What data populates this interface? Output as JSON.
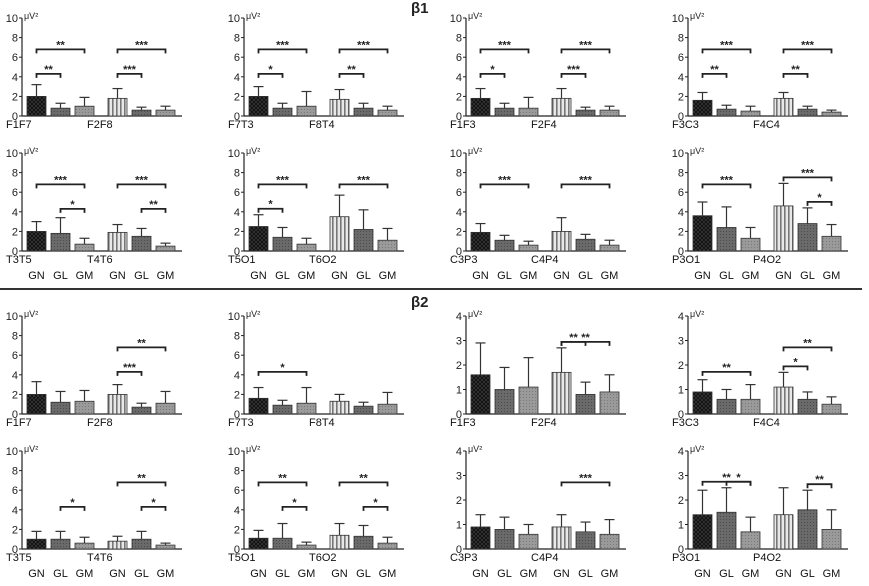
{
  "sections": [
    {
      "title": "β1"
    },
    {
      "title": "β2"
    }
  ],
  "unit": "μV²",
  "group_labels": [
    "GN",
    "GL",
    "GM"
  ],
  "chart_data": [
    {
      "type": "bar",
      "section": "β1",
      "ylim": [
        0,
        10
      ],
      "yticks": [
        0,
        2,
        4,
        6,
        8,
        10
      ],
      "show_groups": false,
      "pairs": [
        {
          "name": "F1F7",
          "values": [
            2.0,
            0.8,
            1.0
          ],
          "errors": [
            1.2,
            0.5,
            0.9
          ]
        },
        {
          "name": "F2F8",
          "values": [
            1.8,
            0.6,
            0.6
          ],
          "errors": [
            1.0,
            0.3,
            0.4
          ]
        }
      ],
      "sig": [
        {
          "pair": 0,
          "from": 0,
          "to": 1,
          "label": "**",
          "level": 1
        },
        {
          "pair": 0,
          "from": 0,
          "to": 2,
          "label": "**",
          "level": 2
        },
        {
          "pair": 1,
          "from": 0,
          "to": 1,
          "label": "***",
          "level": 1
        },
        {
          "pair": 1,
          "from": 0,
          "to": 2,
          "label": "***",
          "level": 2
        }
      ]
    },
    {
      "type": "bar",
      "section": "β1",
      "ylim": [
        0,
        10
      ],
      "yticks": [
        0,
        2,
        4,
        6,
        8,
        10
      ],
      "show_groups": false,
      "pairs": [
        {
          "name": "F7T3",
          "values": [
            2.0,
            0.8,
            1.0
          ],
          "errors": [
            1.0,
            0.5,
            1.5
          ]
        },
        {
          "name": "F8T4",
          "values": [
            1.7,
            0.8,
            0.6
          ],
          "errors": [
            1.0,
            0.5,
            0.4
          ]
        }
      ],
      "sig": [
        {
          "pair": 0,
          "from": 0,
          "to": 1,
          "label": "*",
          "level": 1
        },
        {
          "pair": 0,
          "from": 0,
          "to": 2,
          "label": "***",
          "level": 2
        },
        {
          "pair": 1,
          "from": 0,
          "to": 1,
          "label": "**",
          "level": 1
        },
        {
          "pair": 1,
          "from": 0,
          "to": 2,
          "label": "***",
          "level": 2
        }
      ]
    },
    {
      "type": "bar",
      "section": "β1",
      "ylim": [
        0,
        10
      ],
      "yticks": [
        0,
        2,
        4,
        6,
        8,
        10
      ],
      "show_groups": false,
      "pairs": [
        {
          "name": "F1F3",
          "values": [
            1.8,
            0.8,
            0.8
          ],
          "errors": [
            1.0,
            0.5,
            1.1
          ]
        },
        {
          "name": "F2F4",
          "values": [
            1.8,
            0.6,
            0.6
          ],
          "errors": [
            1.0,
            0.3,
            0.4
          ]
        }
      ],
      "sig": [
        {
          "pair": 0,
          "from": 0,
          "to": 1,
          "label": "*",
          "level": 1
        },
        {
          "pair": 0,
          "from": 0,
          "to": 2,
          "label": "***",
          "level": 2
        },
        {
          "pair": 1,
          "from": 0,
          "to": 1,
          "label": "***",
          "level": 1
        },
        {
          "pair": 1,
          "from": 0,
          "to": 2,
          "label": "***",
          "level": 2
        }
      ]
    },
    {
      "type": "bar",
      "section": "β1",
      "ylim": [
        0,
        10
      ],
      "yticks": [
        0,
        2,
        4,
        6,
        8,
        10
      ],
      "show_groups": false,
      "pairs": [
        {
          "name": "F3C3",
          "values": [
            1.6,
            0.7,
            0.5
          ],
          "errors": [
            0.8,
            0.4,
            0.5
          ]
        },
        {
          "name": "F4C4",
          "values": [
            1.8,
            0.7,
            0.4
          ],
          "errors": [
            0.6,
            0.3,
            0.2
          ]
        }
      ],
      "sig": [
        {
          "pair": 0,
          "from": 0,
          "to": 1,
          "label": "**",
          "level": 1
        },
        {
          "pair": 0,
          "from": 0,
          "to": 2,
          "label": "***",
          "level": 2
        },
        {
          "pair": 1,
          "from": 0,
          "to": 1,
          "label": "**",
          "level": 1
        },
        {
          "pair": 1,
          "from": 0,
          "to": 2,
          "label": "***",
          "level": 2
        }
      ]
    },
    {
      "type": "bar",
      "section": "β1",
      "ylim": [
        0,
        10
      ],
      "yticks": [
        0,
        2,
        4,
        6,
        8,
        10
      ],
      "show_groups": true,
      "pairs": [
        {
          "name": "T3T5",
          "values": [
            2.0,
            1.8,
            0.7
          ],
          "errors": [
            1.0,
            1.6,
            0.6
          ]
        },
        {
          "name": "T4T6",
          "values": [
            1.9,
            1.5,
            0.5
          ],
          "errors": [
            0.8,
            0.8,
            0.3
          ]
        }
      ],
      "sig": [
        {
          "pair": 0,
          "from": 1,
          "to": 2,
          "label": "*",
          "level": 1
        },
        {
          "pair": 0,
          "from": 0,
          "to": 2,
          "label": "***",
          "level": 2
        },
        {
          "pair": 1,
          "from": 1,
          "to": 2,
          "label": "**",
          "level": 1
        },
        {
          "pair": 1,
          "from": 0,
          "to": 2,
          "label": "***",
          "level": 2
        }
      ]
    },
    {
      "type": "bar",
      "section": "β1",
      "ylim": [
        0,
        10
      ],
      "yticks": [
        0,
        2,
        4,
        6,
        8,
        10
      ],
      "show_groups": true,
      "pairs": [
        {
          "name": "T5O1",
          "values": [
            2.5,
            1.4,
            0.7
          ],
          "errors": [
            1.2,
            1.0,
            0.6
          ]
        },
        {
          "name": "T6O2",
          "values": [
            3.5,
            2.2,
            1.1
          ],
          "errors": [
            2.2,
            2.0,
            1.2
          ]
        }
      ],
      "sig": [
        {
          "pair": 0,
          "from": 0,
          "to": 1,
          "label": "*",
          "level": 1
        },
        {
          "pair": 0,
          "from": 0,
          "to": 2,
          "label": "***",
          "level": 2
        },
        {
          "pair": 1,
          "from": 0,
          "to": 2,
          "label": "***",
          "level": 2
        }
      ]
    },
    {
      "type": "bar",
      "section": "β1",
      "ylim": [
        0,
        10
      ],
      "yticks": [
        0,
        2,
        4,
        6,
        8,
        10
      ],
      "show_groups": true,
      "pairs": [
        {
          "name": "C3P3",
          "values": [
            1.9,
            1.1,
            0.6
          ],
          "errors": [
            0.9,
            0.5,
            0.4
          ]
        },
        {
          "name": "C4P4",
          "values": [
            2.0,
            1.2,
            0.6
          ],
          "errors": [
            1.4,
            0.5,
            0.5
          ]
        }
      ],
      "sig": [
        {
          "pair": 0,
          "from": 0,
          "to": 2,
          "label": "***",
          "level": 2
        },
        {
          "pair": 1,
          "from": 0,
          "to": 2,
          "label": "***",
          "level": 2
        }
      ]
    },
    {
      "type": "bar",
      "section": "β1",
      "ylim": [
        0,
        10
      ],
      "yticks": [
        0,
        2,
        4,
        6,
        8,
        10
      ],
      "show_groups": true,
      "pairs": [
        {
          "name": "P3O1",
          "values": [
            3.6,
            2.4,
            1.3
          ],
          "errors": [
            1.4,
            2.1,
            1.1
          ]
        },
        {
          "name": "P4O2",
          "values": [
            4.6,
            2.8,
            1.5
          ],
          "errors": [
            2.3,
            1.6,
            1.2
          ]
        }
      ],
      "sig": [
        {
          "pair": 0,
          "from": 0,
          "to": 2,
          "label": "***",
          "level": 2
        },
        {
          "pair": 1,
          "from": 1,
          "to": 2,
          "label": "*",
          "level": 1
        },
        {
          "pair": 1,
          "from": 0,
          "to": 2,
          "label": "***",
          "level": 2
        }
      ]
    },
    {
      "type": "bar",
      "section": "β2",
      "ylim": [
        0,
        10
      ],
      "yticks": [
        0,
        2,
        4,
        6,
        8,
        10
      ],
      "show_groups": false,
      "pairs": [
        {
          "name": "F1F7",
          "values": [
            2.0,
            1.2,
            1.3
          ],
          "errors": [
            1.3,
            1.1,
            1.1
          ]
        },
        {
          "name": "F2F8",
          "values": [
            2.0,
            0.7,
            1.1
          ],
          "errors": [
            1.0,
            0.4,
            1.2
          ]
        }
      ],
      "sig": [
        {
          "pair": 1,
          "from": 0,
          "to": 1,
          "label": "***",
          "level": 1
        },
        {
          "pair": 1,
          "from": 0,
          "to": 2,
          "label": "**",
          "level": 2
        }
      ]
    },
    {
      "type": "bar",
      "section": "β2",
      "ylim": [
        0,
        10
      ],
      "yticks": [
        0,
        2,
        4,
        6,
        8,
        10
      ],
      "show_groups": false,
      "pairs": [
        {
          "name": "F7T3",
          "values": [
            1.6,
            0.9,
            1.1
          ],
          "errors": [
            1.1,
            0.5,
            1.6
          ]
        },
        {
          "name": "F8T4",
          "values": [
            1.3,
            0.8,
            1.0
          ],
          "errors": [
            0.7,
            0.4,
            1.2
          ]
        }
      ],
      "sig": [
        {
          "pair": 0,
          "from": 0,
          "to": 2,
          "label": "*",
          "level": 1
        }
      ]
    },
    {
      "type": "bar",
      "section": "β2",
      "ylim": [
        0,
        4
      ],
      "yticks": [
        0,
        1,
        2,
        3,
        4
      ],
      "show_groups": false,
      "pairs": [
        {
          "name": "F1F3",
          "values": [
            1.6,
            1.0,
            1.1
          ],
          "errors": [
            1.3,
            0.9,
            1.2
          ]
        },
        {
          "name": "F2F4",
          "values": [
            1.7,
            0.8,
            0.9
          ],
          "errors": [
            1.0,
            0.5,
            0.7
          ]
        }
      ],
      "sig": [
        {
          "pair": 1,
          "from": 0,
          "to": 1,
          "label": "**",
          "level": 1
        },
        {
          "pair": 1,
          "from": 0,
          "to": 2,
          "label": "**",
          "level": 2
        }
      ]
    },
    {
      "type": "bar",
      "section": "β2",
      "ylim": [
        0,
        4
      ],
      "yticks": [
        0,
        1,
        2,
        3,
        4
      ],
      "show_groups": false,
      "pairs": [
        {
          "name": "F3C3",
          "values": [
            0.9,
            0.6,
            0.6
          ],
          "errors": [
            0.5,
            0.4,
            0.6
          ]
        },
        {
          "name": "F4C4",
          "values": [
            1.1,
            0.6,
            0.4
          ],
          "errors": [
            0.6,
            0.3,
            0.3
          ]
        }
      ],
      "sig": [
        {
          "pair": 0,
          "from": 0,
          "to": 2,
          "label": "**",
          "level": 1
        },
        {
          "pair": 1,
          "from": 0,
          "to": 1,
          "label": "*",
          "level": 1
        },
        {
          "pair": 1,
          "from": 0,
          "to": 2,
          "label": "**",
          "level": 2
        }
      ]
    },
    {
      "type": "bar",
      "section": "β2",
      "ylim": [
        0,
        10
      ],
      "yticks": [
        0,
        2,
        4,
        6,
        8,
        10
      ],
      "show_groups": true,
      "pairs": [
        {
          "name": "T3T5",
          "values": [
            1.0,
            1.0,
            0.6
          ],
          "errors": [
            0.8,
            0.8,
            0.6
          ]
        },
        {
          "name": "T4T6",
          "values": [
            0.8,
            1.0,
            0.4
          ],
          "errors": [
            0.5,
            0.8,
            0.2
          ]
        }
      ],
      "sig": [
        {
          "pair": 0,
          "from": 1,
          "to": 2,
          "label": "*",
          "level": 1
        },
        {
          "pair": 1,
          "from": 1,
          "to": 2,
          "label": "*",
          "level": 1
        },
        {
          "pair": 1,
          "from": 0,
          "to": 2,
          "label": "**",
          "level": 2
        }
      ]
    },
    {
      "type": "bar",
      "section": "β2",
      "ylim": [
        0,
        10
      ],
      "yticks": [
        0,
        2,
        4,
        6,
        8,
        10
      ],
      "show_groups": true,
      "pairs": [
        {
          "name": "T5O1",
          "values": [
            1.1,
            1.1,
            0.4
          ],
          "errors": [
            0.8,
            1.5,
            0.3
          ]
        },
        {
          "name": "T6O2",
          "values": [
            1.4,
            1.3,
            0.6
          ],
          "errors": [
            1.2,
            1.1,
            0.6
          ]
        }
      ],
      "sig": [
        {
          "pair": 0,
          "from": 1,
          "to": 2,
          "label": "*",
          "level": 1
        },
        {
          "pair": 0,
          "from": 0,
          "to": 2,
          "label": "**",
          "level": 2
        },
        {
          "pair": 1,
          "from": 1,
          "to": 2,
          "label": "*",
          "level": 1
        },
        {
          "pair": 1,
          "from": 0,
          "to": 2,
          "label": "**",
          "level": 2
        }
      ]
    },
    {
      "type": "bar",
      "section": "β2",
      "ylim": [
        0,
        4
      ],
      "yticks": [
        0,
        1,
        2,
        3,
        4
      ],
      "show_groups": true,
      "pairs": [
        {
          "name": "C3P3",
          "values": [
            0.9,
            0.8,
            0.6
          ],
          "errors": [
            0.5,
            0.5,
            0.4
          ]
        },
        {
          "name": "C4P4",
          "values": [
            0.9,
            0.7,
            0.6
          ],
          "errors": [
            0.5,
            0.4,
            0.6
          ]
        }
      ],
      "sig": [
        {
          "pair": 1,
          "from": 0,
          "to": 2,
          "label": "***",
          "level": 2
        }
      ]
    },
    {
      "type": "bar",
      "section": "β2",
      "ylim": [
        0,
        4
      ],
      "yticks": [
        0,
        1,
        2,
        3,
        4
      ],
      "show_groups": true,
      "pairs": [
        {
          "name": "P3O1",
          "values": [
            1.4,
            1.5,
            0.7
          ],
          "errors": [
            1.0,
            1.0,
            0.6
          ]
        },
        {
          "name": "P4O2",
          "values": [
            1.4,
            1.6,
            0.8
          ],
          "errors": [
            1.1,
            0.8,
            0.8
          ]
        }
      ],
      "sig": [
        {
          "pair": 0,
          "from": 1,
          "to": 2,
          "label": "*",
          "level": 1
        },
        {
          "pair": 0,
          "from": 0,
          "to": 2,
          "label": "**",
          "level": 2
        },
        {
          "pair": 1,
          "from": 1,
          "to": 2,
          "label": "**",
          "level": 1
        }
      ]
    }
  ]
}
